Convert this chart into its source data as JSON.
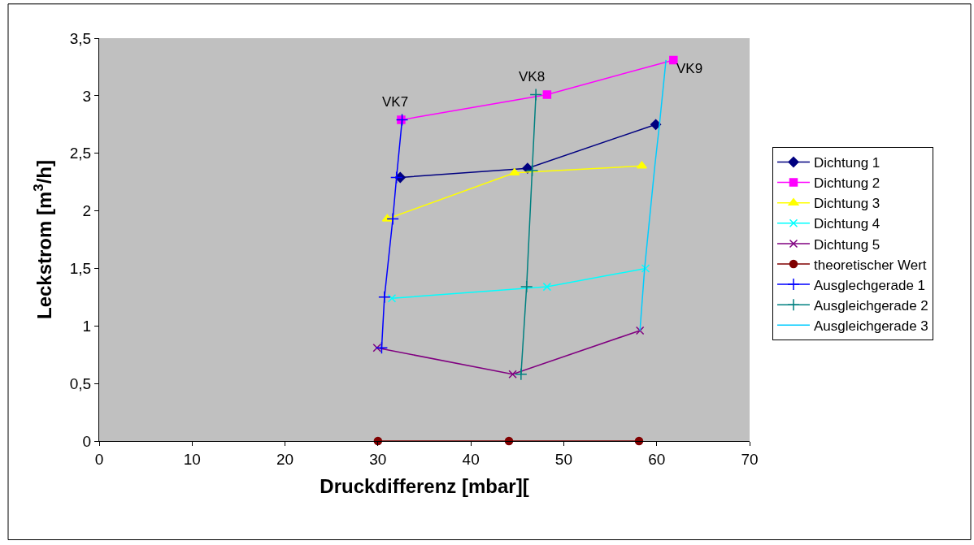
{
  "chart_data": {
    "type": "line",
    "xlabel": "Druckdifferenz [mbar][",
    "ylabel": "Leckstrom [m$^{3}$/h]",
    "xlim": [
      0,
      70
    ],
    "xticks": [
      0,
      10,
      20,
      30,
      40,
      50,
      60,
      70
    ],
    "ylim": [
      0,
      3.5
    ],
    "yticks": [
      0,
      {
        "value": 0.5,
        "label": "0,5"
      },
      1,
      {
        "value": 1.5,
        "label": "1,5"
      },
      2,
      {
        "value": 2.5,
        "label": "2,5"
      },
      3,
      {
        "value": 3.5,
        "label": "3,5"
      }
    ],
    "grid": false,
    "legend": "right",
    "series": [
      {
        "name": "Dichtung 1",
        "color": "#000080",
        "marker": "diamond",
        "x": [
          32.4,
          46.1,
          59.9
        ],
        "values": [
          2.29,
          2.37,
          2.75
        ]
      },
      {
        "name": "Dichtung 2",
        "color": "#ff00ff",
        "marker": "square",
        "x": [
          32.5,
          48.2,
          61.8
        ],
        "values": [
          2.79,
          3.01,
          3.31
        ]
      },
      {
        "name": "Dichtung 3",
        "color": "#ffff00",
        "marker": "triangle",
        "x": [
          31.0,
          44.7,
          58.4
        ],
        "values": [
          1.93,
          2.33,
          2.39
        ]
      },
      {
        "name": "Dichtung 4",
        "color": "#00ffff",
        "marker": "cross",
        "x": [
          31.5,
          48.2,
          58.8
        ],
        "values": [
          1.24,
          1.34,
          1.5
        ]
      },
      {
        "name": "Dichtung 5",
        "color": "#800080",
        "marker": "cross",
        "x": [
          29.9,
          44.5,
          58.2
        ],
        "values": [
          0.81,
          0.58,
          0.96
        ]
      },
      {
        "name": "theoretischer Wert",
        "color": "#800000",
        "marker": "circle",
        "x": [
          30.0,
          44.1,
          58.1
        ],
        "values": [
          0,
          0,
          0
        ]
      },
      {
        "name": "Ausglechgerade 1",
        "color": "#0000ff",
        "marker": "plus",
        "x": [
          30.4,
          30.7,
          31.6,
          32.0,
          32.6
        ],
        "values": [
          0.81,
          1.25,
          1.93,
          2.29,
          2.79
        ]
      },
      {
        "name": "Ausgleichgerade 2",
        "color": "#008080",
        "marker": "plus",
        "x": [
          45.4,
          46.0,
          46.6,
          47.0
        ],
        "values": [
          0.58,
          1.34,
          2.35,
          3.01
        ]
      },
      {
        "name": "Ausgleichgerade 3",
        "color": "#00ccff",
        "marker": "none",
        "x": [
          58.2,
          58.7,
          59.8,
          60.3,
          61.0
        ],
        "values": [
          0.96,
          1.5,
          2.39,
          2.75,
          3.31
        ]
      }
    ],
    "annotations": [
      "VK7",
      "VK8",
      "VK9"
    ]
  }
}
